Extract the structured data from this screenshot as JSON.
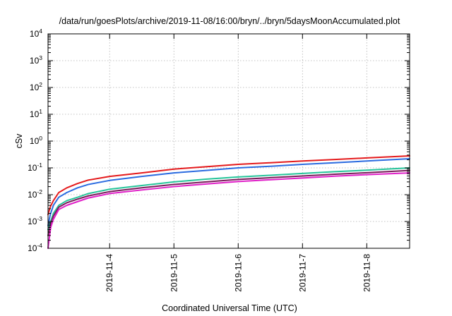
{
  "chart_data": {
    "type": "line",
    "title": "/data/run/goesPlots/archive/2019-11-08/16:00/bryn/../bryn/5daysMoonAccumulated.plot",
    "xlabel": "Coordinated Universal Time (UTC)",
    "ylabel": "cSv",
    "yscale": "log",
    "ylim": [
      0.0001,
      10000
    ],
    "xlim": [
      "2019-11-03T01:00",
      "2019-11-08T16:00"
    ],
    "grid": true,
    "y_ticks": [
      {
        "base": "10",
        "exp": "-4"
      },
      {
        "base": "10",
        "exp": "-3"
      },
      {
        "base": "10",
        "exp": "-2"
      },
      {
        "base": "10",
        "exp": "-1"
      },
      {
        "base": "10",
        "exp": "0"
      },
      {
        "base": "10",
        "exp": "1"
      },
      {
        "base": "10",
        "exp": "2"
      },
      {
        "base": "10",
        "exp": "3"
      },
      {
        "base": "10",
        "exp": "4"
      }
    ],
    "x_ticks": [
      "2019-11-4",
      "2019-11-5",
      "2019-11-6",
      "2019-11-7",
      "2019-11-8"
    ],
    "series": [
      {
        "color": "#e41a1c",
        "points": [
          [
            "2019-11-03T01:00",
            0.0018
          ],
          [
            "2019-11-03T01:50",
            0.0035
          ],
          [
            "2019-11-03T03:00",
            0.006
          ],
          [
            "2019-11-03T05:00",
            0.012
          ],
          [
            "2019-11-03T08:00",
            0.018
          ],
          [
            "2019-11-03T12:00",
            0.026
          ],
          [
            "2019-11-03T16:00",
            0.035
          ],
          [
            "2019-11-04T00:00",
            0.048
          ],
          [
            "2019-11-04T12:00",
            0.065
          ],
          [
            "2019-11-05T00:00",
            0.09
          ],
          [
            "2019-11-05T12:00",
            0.11
          ],
          [
            "2019-11-06T00:00",
            0.135
          ],
          [
            "2019-11-06T12:00",
            0.155
          ],
          [
            "2019-11-07T00:00",
            0.18
          ],
          [
            "2019-11-07T12:00",
            0.205
          ],
          [
            "2019-11-08T00:00",
            0.235
          ],
          [
            "2019-11-08T16:00",
            0.28
          ]
        ]
      },
      {
        "color": "#2b6be0",
        "points": [
          [
            "2019-11-03T01:00",
            0.0007
          ],
          [
            "2019-11-03T01:50",
            0.0018
          ],
          [
            "2019-11-03T03:00",
            0.004
          ],
          [
            "2019-11-03T05:00",
            0.008
          ],
          [
            "2019-11-03T08:00",
            0.012
          ],
          [
            "2019-11-03T12:00",
            0.018
          ],
          [
            "2019-11-03T16:00",
            0.024
          ],
          [
            "2019-11-04T00:00",
            0.034
          ],
          [
            "2019-11-04T12:00",
            0.048
          ],
          [
            "2019-11-05T00:00",
            0.065
          ],
          [
            "2019-11-05T12:00",
            0.08
          ],
          [
            "2019-11-06T00:00",
            0.1
          ],
          [
            "2019-11-06T12:00",
            0.115
          ],
          [
            "2019-11-07T00:00",
            0.135
          ],
          [
            "2019-11-07T12:00",
            0.155
          ],
          [
            "2019-11-08T00:00",
            0.18
          ],
          [
            "2019-11-08T16:00",
            0.22
          ]
        ]
      },
      {
        "color": "#26c49a",
        "points": [
          [
            "2019-11-03T01:00",
            0.0005
          ],
          [
            "2019-11-03T02:00",
            0.001
          ],
          [
            "2019-11-03T03:00",
            0.002
          ],
          [
            "2019-11-03T05:00",
            0.004
          ],
          [
            "2019-11-03T08:00",
            0.006
          ],
          [
            "2019-11-03T12:00",
            0.008
          ],
          [
            "2019-11-03T16:00",
            0.011
          ],
          [
            "2019-11-04T00:00",
            0.016
          ],
          [
            "2019-11-04T12:00",
            0.022
          ],
          [
            "2019-11-05T00:00",
            0.03
          ],
          [
            "2019-11-05T12:00",
            0.038
          ],
          [
            "2019-11-06T00:00",
            0.046
          ],
          [
            "2019-11-06T12:00",
            0.053
          ],
          [
            "2019-11-07T00:00",
            0.062
          ],
          [
            "2019-11-07T12:00",
            0.072
          ],
          [
            "2019-11-08T00:00",
            0.082
          ],
          [
            "2019-11-08T16:00",
            0.1
          ]
        ]
      },
      {
        "color": "#7a1c5a",
        "points": [
          [
            "2019-11-03T01:00",
            0.0003
          ],
          [
            "2019-11-03T02:00",
            0.0008
          ],
          [
            "2019-11-03T03:00",
            0.0016
          ],
          [
            "2019-11-03T05:00",
            0.0034
          ],
          [
            "2019-11-03T08:00",
            0.005
          ],
          [
            "2019-11-03T12:00",
            0.0068
          ],
          [
            "2019-11-03T16:00",
            0.009
          ],
          [
            "2019-11-04T00:00",
            0.013
          ],
          [
            "2019-11-04T12:00",
            0.018
          ],
          [
            "2019-11-05T00:00",
            0.024
          ],
          [
            "2019-11-05T12:00",
            0.03
          ],
          [
            "2019-11-06T00:00",
            0.037
          ],
          [
            "2019-11-06T12:00",
            0.043
          ],
          [
            "2019-11-07T00:00",
            0.05
          ],
          [
            "2019-11-07T12:00",
            0.058
          ],
          [
            "2019-11-08T00:00",
            0.066
          ],
          [
            "2019-11-08T16:00",
            0.08
          ]
        ]
      },
      {
        "color": "#e020c8",
        "points": [
          [
            "2019-11-03T01:00",
            0.0001
          ],
          [
            "2019-11-03T02:00",
            0.0006
          ],
          [
            "2019-11-03T03:00",
            0.0012
          ],
          [
            "2019-11-03T05:00",
            0.0028
          ],
          [
            "2019-11-03T08:00",
            0.004
          ],
          [
            "2019-11-03T12:00",
            0.0055
          ],
          [
            "2019-11-03T16:00",
            0.0075
          ],
          [
            "2019-11-04T00:00",
            0.011
          ],
          [
            "2019-11-04T12:00",
            0.015
          ],
          [
            "2019-11-05T00:00",
            0.02
          ],
          [
            "2019-11-05T12:00",
            0.025
          ],
          [
            "2019-11-06T00:00",
            0.031
          ],
          [
            "2019-11-06T12:00",
            0.036
          ],
          [
            "2019-11-07T00:00",
            0.042
          ],
          [
            "2019-11-07T12:00",
            0.049
          ],
          [
            "2019-11-08T00:00",
            0.056
          ],
          [
            "2019-11-08T16:00",
            0.065
          ]
        ]
      }
    ]
  }
}
